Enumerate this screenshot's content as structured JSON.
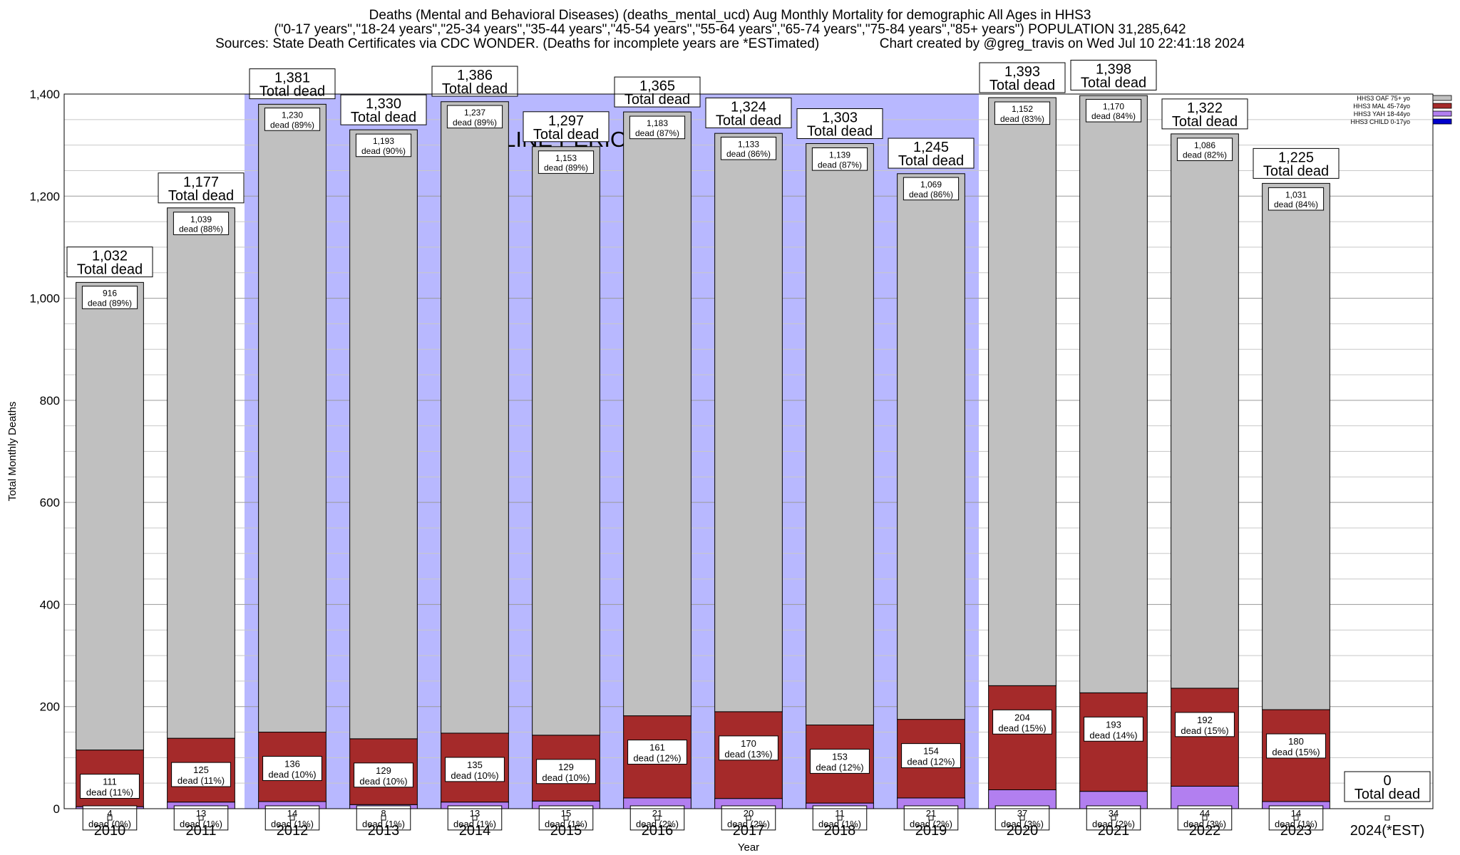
{
  "title": {
    "line1": "Deaths (Mental and Behavioral Diseases) (deaths_mental_ucd) Aug Monthly Mortality for demographic All Ages in HHS3",
    "line2": "(\"0-17 years\",\"18-24 years\",\"25-34 years\",\"35-44 years\",\"45-54 years\",\"55-64 years\",\"65-74 years\",\"75-84 years\",\"85+ years\") POPULATION 31,285,642",
    "line3": "Sources: State Death Certificates via CDC WONDER. (Deaths for incomplete years are *ESTimated)                Chart created by @greg_travis on Wed Jul 10 22:41:18 2024"
  },
  "chart_data": {
    "type": "bar",
    "stacked": true,
    "xlabel": "Year",
    "ylabel": "Total Monthly Deaths",
    "ylim": [
      0,
      1400
    ],
    "yticks": [
      0,
      200,
      400,
      600,
      800,
      1000,
      1200,
      1400
    ],
    "ytick_labels": [
      "0",
      "200",
      "400",
      "600",
      "800",
      "1,000",
      "1,200",
      "1,400"
    ],
    "grid": true,
    "legend_position": "top-right",
    "baseline_label": "BASELINE PERIOD",
    "baseline_categories": [
      "2012",
      "2013",
      "2014",
      "2015",
      "2016",
      "2017",
      "2018",
      "2019"
    ],
    "categories": [
      "2010",
      "2011",
      "2012",
      "2013",
      "2014",
      "2015",
      "2016",
      "2017",
      "2018",
      "2019",
      "2020",
      "2021",
      "2022",
      "2023",
      "2024(*EST)"
    ],
    "series": [
      {
        "name": "HHS3 CHILD 0-17yo",
        "color": "#0000cc",
        "values": [
          0,
          0,
          0,
          0,
          0,
          0,
          0,
          0,
          0,
          0,
          0,
          0,
          0,
          0,
          0
        ]
      },
      {
        "name": "HHS3 YAH 18-44yo",
        "color": "#b27ff0",
        "values": [
          4,
          13,
          14,
          8,
          13,
          15,
          21,
          20,
          11,
          21,
          37,
          34,
          44,
          14,
          0
        ]
      },
      {
        "name": "HHS3 MAL 45-74yo",
        "color": "#a52a2a",
        "values": [
          111,
          125,
          136,
          129,
          135,
          129,
          161,
          170,
          153,
          154,
          204,
          193,
          192,
          180,
          0
        ]
      },
      {
        "name": "HHS3 OAF 75+ yo",
        "color": "#c0c0c0",
        "values": [
          916,
          1039,
          1230,
          1193,
          1237,
          1153,
          1183,
          1133,
          1139,
          1069,
          1152,
          1170,
          1086,
          1031,
          0
        ]
      }
    ],
    "totals": [
      1032,
      1177,
      1381,
      1330,
      1386,
      1297,
      1365,
      1324,
      1303,
      1245,
      1393,
      1398,
      1322,
      1225,
      0
    ],
    "total_labels": [
      "1,032",
      "1,177",
      "1,381",
      "1,330",
      "1,386",
      "1,297",
      "1,365",
      "1,324",
      "1,303",
      "1,245",
      "1,393",
      "1,398",
      "1,322",
      "1,225",
      "0"
    ],
    "total_suffix": "Total dead",
    "segment_labels": {
      "HHS3 OAF 75+ yo": [
        [
          "916",
          "dead (89%)"
        ],
        [
          "1,039",
          "dead (88%)"
        ],
        [
          "1,230",
          "dead (89%)"
        ],
        [
          "1,193",
          "dead (90%)"
        ],
        [
          "1,237",
          "dead (89%)"
        ],
        [
          "1,153",
          "dead (89%)"
        ],
        [
          "1,183",
          "dead (87%)"
        ],
        [
          "1,133",
          "dead (86%)"
        ],
        [
          "1,139",
          "dead (87%)"
        ],
        [
          "1,069",
          "dead (86%)"
        ],
        [
          "1,152",
          "dead (83%)"
        ],
        [
          "1,170",
          "dead (84%)"
        ],
        [
          "1,086",
          "dead (82%)"
        ],
        [
          "1,031",
          "dead (84%)"
        ]
      ],
      "HHS3 MAL 45-74yo": [
        [
          "111",
          "dead (11%)"
        ],
        [
          "125",
          "dead (11%)"
        ],
        [
          "136",
          "dead (10%)"
        ],
        [
          "129",
          "dead (10%)"
        ],
        [
          "135",
          "dead (10%)"
        ],
        [
          "129",
          "dead (10%)"
        ],
        [
          "161",
          "dead (12%)"
        ],
        [
          "170",
          "dead (13%)"
        ],
        [
          "153",
          "dead (12%)"
        ],
        [
          "154",
          "dead (12%)"
        ],
        [
          "204",
          "dead (15%)"
        ],
        [
          "193",
          "dead (14%)"
        ],
        [
          "192",
          "dead (15%)"
        ],
        [
          "180",
          "dead (15%)"
        ]
      ],
      "HHS3 YAH 18-44yo": [
        [
          "4",
          "dead (0%)"
        ],
        [
          "13",
          "dead (1%)"
        ],
        [
          "14",
          "dead (1%)"
        ],
        [
          "8",
          "dead (1%)"
        ],
        [
          "13",
          "dead (1%)"
        ],
        [
          "15",
          "dead (1%)"
        ],
        [
          "21",
          "dead (2%)"
        ],
        [
          "20",
          "dead (2%)"
        ],
        [
          "11",
          "dead (1%)"
        ],
        [
          "21",
          "dead (2%)"
        ],
        [
          "37",
          "dead (3%)"
        ],
        [
          "34",
          "dead (2%)"
        ],
        [
          "44",
          "dead (3%)"
        ],
        [
          "14",
          "dead (1%)"
        ]
      ]
    },
    "colors": {
      "baseline_band": "#b8b8ff",
      "bar_outline": "#000000"
    }
  }
}
